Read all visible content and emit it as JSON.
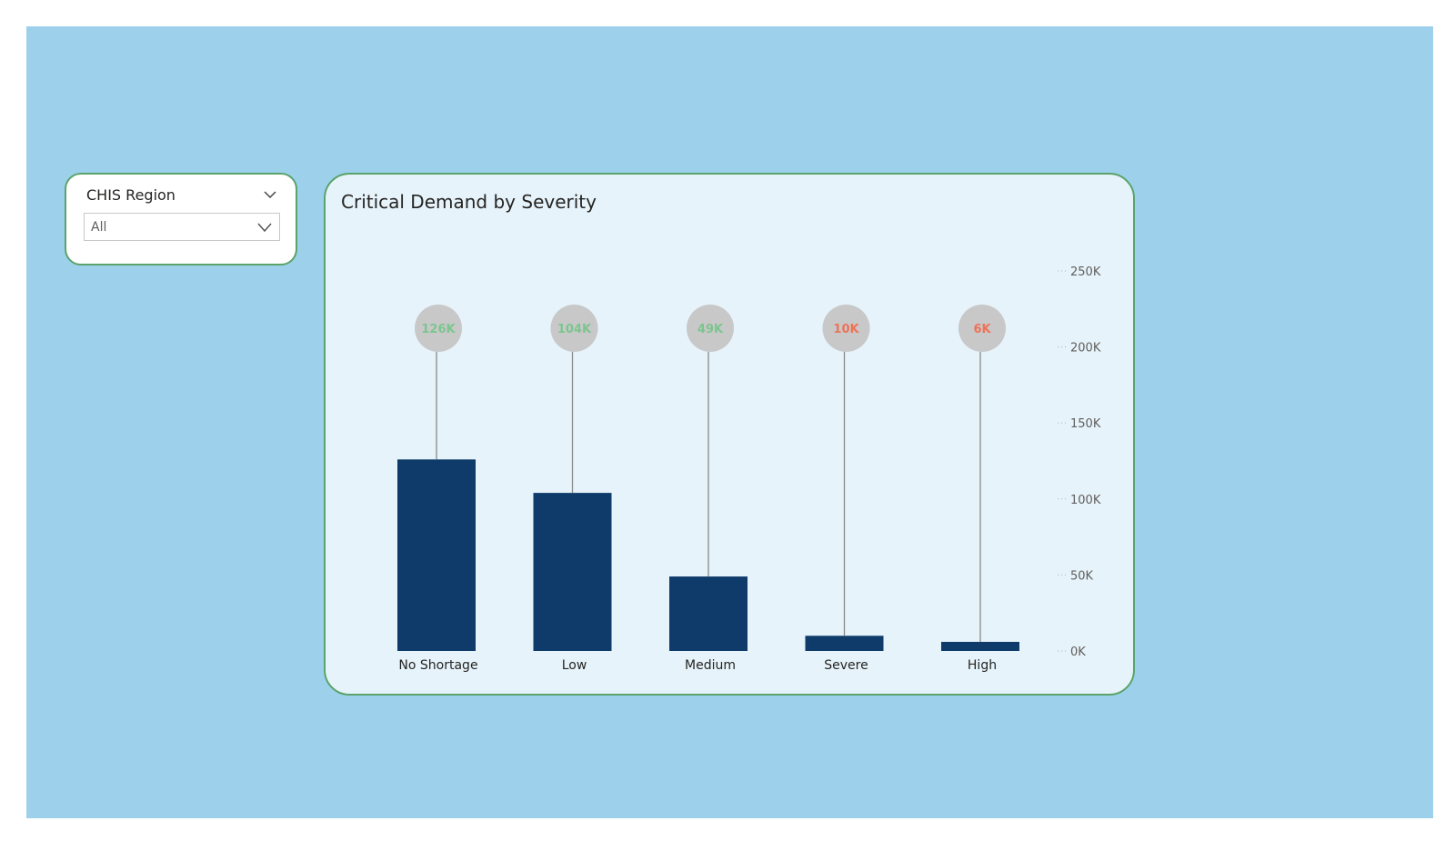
{
  "slicer": {
    "title": "CHIS Region",
    "value": "All",
    "header_icon": "chevron-down-icon",
    "dropdown_icon": "chevron-down-icon"
  },
  "colors": {
    "canvas": "#9dd1eb",
    "card_border": "#5aa36a",
    "card_background": "#e6f3fa",
    "bar": "#0f3b6b",
    "bubble": "#c8c8c8",
    "label_good": "#7cc58f",
    "label_bad": "#ec7358",
    "stem": "#8a8a8a"
  },
  "chart_data": {
    "type": "bar",
    "title": "Critical Demand by Severity",
    "categories": [
      "No Shortage",
      "Low",
      "Medium",
      "Severe",
      "High"
    ],
    "values": [
      126000,
      104000,
      49000,
      10000,
      6000
    ],
    "data_labels": [
      "126K",
      "104K",
      "49K",
      "10K",
      "6K"
    ],
    "label_status": [
      "good",
      "good",
      "good",
      "bad",
      "bad"
    ],
    "ylim": [
      0,
      250000
    ],
    "yticks": [
      0,
      50000,
      100000,
      150000,
      200000,
      250000
    ],
    "ytick_labels": [
      "0K",
      "50K",
      "100K",
      "150K",
      "200K",
      "250K"
    ],
    "y_axis_side": "right",
    "xlabel": "",
    "ylabel": ""
  }
}
